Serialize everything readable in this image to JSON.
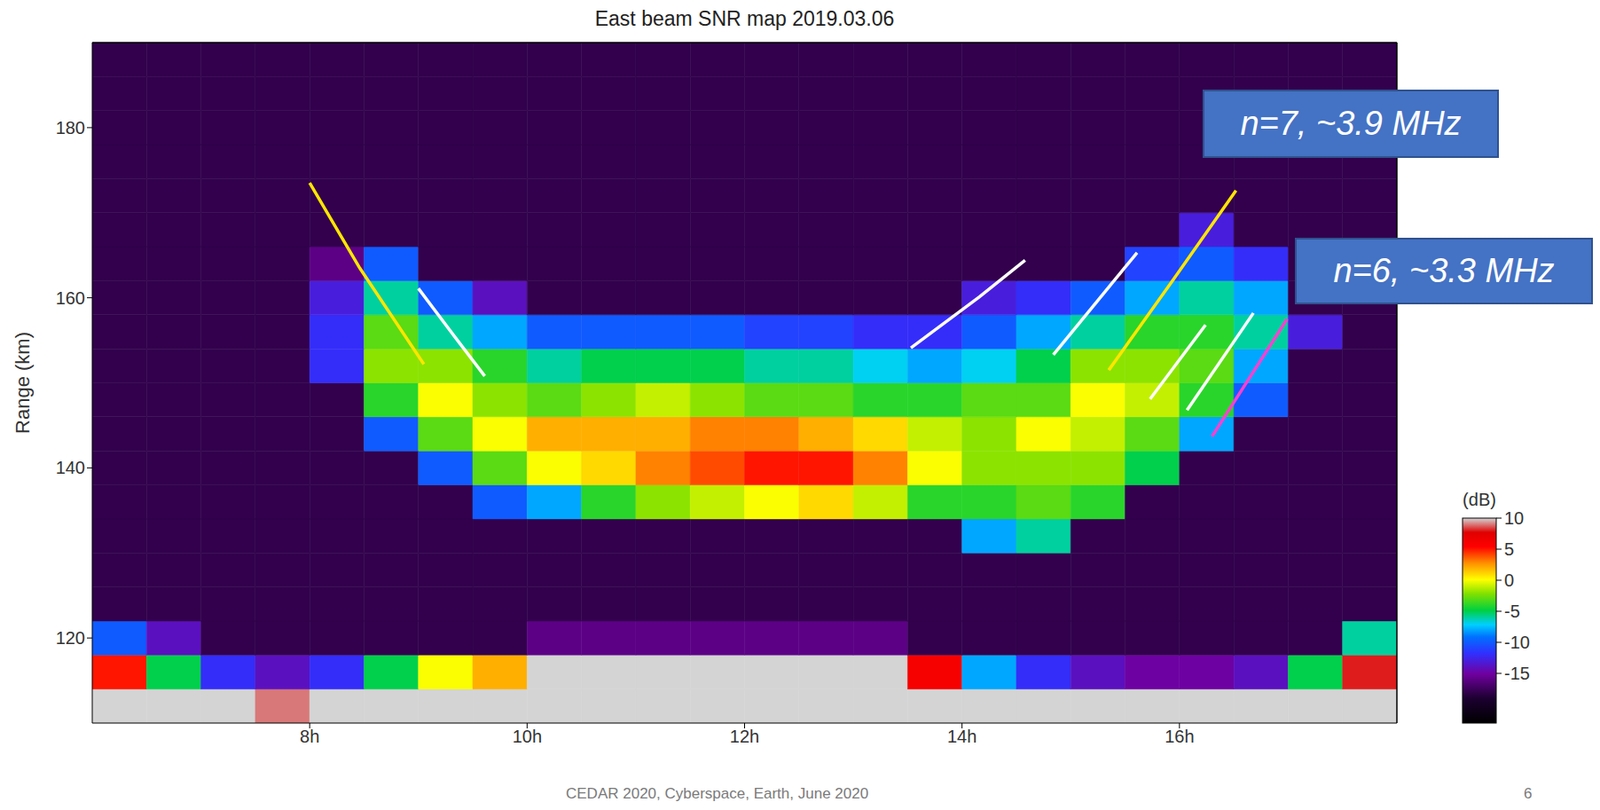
{
  "chart_data": {
    "type": "heatmap",
    "title": "East beam SNR map 2019.03.06",
    "y_label": "Range (km)",
    "xlim": [
      6,
      18
    ],
    "xticks": [
      {
        "value": 8,
        "label": "8h"
      },
      {
        "value": 10,
        "label": "10h"
      },
      {
        "value": 12,
        "label": "12h"
      },
      {
        "value": 14,
        "label": "14h"
      },
      {
        "value": 16,
        "label": "16h"
      }
    ],
    "ylim": [
      110,
      190
    ],
    "yticks": [
      120,
      140,
      160,
      180
    ],
    "x_edges": [
      6,
      6.5,
      7,
      7.5,
      8,
      8.5,
      9,
      9.5,
      10,
      10.5,
      11,
      11.5,
      12,
      12.5,
      13,
      13.5,
      14,
      14.5,
      15,
      15.5,
      16,
      16.5,
      17,
      17.5,
      18
    ],
    "y_edges": [
      110,
      114,
      118,
      122,
      126,
      130,
      134,
      138,
      142,
      146,
      150,
      154,
      158,
      162,
      166,
      170,
      174,
      178,
      182,
      186,
      190
    ],
    "cells": [
      [
        12,
        12,
        10,
        9,
        11,
        12,
        12,
        12,
        12,
        12,
        12,
        12,
        12,
        12,
        12,
        12,
        12,
        12,
        12,
        12,
        12,
        12,
        12,
        12
      ],
      [
        5,
        -5,
        -12,
        -14,
        -12,
        -5,
        0,
        2,
        12,
        12,
        12,
        12,
        12,
        12,
        12,
        6,
        -8,
        -12,
        -14,
        -15,
        -15,
        -14,
        -5,
        8
      ],
      [
        -10,
        -14,
        -18,
        -18,
        -18,
        -18,
        -18,
        -18,
        -16,
        -16,
        -16,
        -16,
        -16,
        -16,
        -16,
        -18,
        -18,
        -18,
        -18,
        -18,
        -18,
        -18,
        -18,
        -6
      ],
      [
        -18,
        -18,
        -18,
        -18,
        -18,
        -18,
        -18,
        -18,
        -18,
        -18,
        -18,
        -18,
        -18,
        -18,
        -18,
        -18,
        -18,
        -18,
        -18,
        -18,
        -18,
        -18,
        -18,
        -18
      ],
      [
        -18,
        -18,
        -18,
        -18,
        -18,
        -18,
        -18,
        -18,
        -18,
        -18,
        -18,
        -18,
        -18,
        -18,
        -18,
        -18,
        -18,
        -18,
        -18,
        -18,
        -18,
        -18,
        -18,
        -18
      ],
      [
        -18,
        -18,
        -18,
        -18,
        -18,
        -18,
        -18,
        -18,
        -18,
        -18,
        -18,
        -18,
        -18,
        -18,
        -18,
        -18,
        -8,
        -6,
        -18,
        -18,
        -18,
        -18,
        -18,
        -18
      ],
      [
        -18,
        -18,
        -18,
        -18,
        -18,
        -18,
        -18,
        -10,
        -8,
        -4,
        -2,
        -1,
        0,
        1,
        -1,
        -4,
        -4,
        -3,
        -4,
        -18,
        -18,
        -18,
        -18,
        -18
      ],
      [
        -18,
        -18,
        -18,
        -18,
        -18,
        -18,
        -10,
        -3,
        0,
        1,
        3,
        4,
        5,
        5,
        3,
        0,
        -2,
        -2,
        -2,
        -5,
        -18,
        -18,
        -18,
        -18
      ],
      [
        -18,
        -18,
        -18,
        -18,
        -18,
        -10,
        -3,
        0,
        2,
        2,
        2,
        3,
        3,
        2,
        1,
        -1,
        -2,
        0,
        -1,
        -3,
        -8,
        -18,
        -18,
        -18
      ],
      [
        -18,
        -18,
        -18,
        -18,
        -18,
        -4,
        0,
        -2,
        -3,
        -2,
        -1,
        -2,
        -3,
        -3,
        -4,
        -4,
        -3,
        -3,
        0,
        -1,
        -4,
        -10,
        -18,
        -18
      ],
      [
        -18,
        -18,
        -18,
        -18,
        -12,
        -2,
        -2,
        -4,
        -6,
        -5,
        -5,
        -5,
        -6,
        -6,
        -7,
        -8,
        -7,
        -5,
        -2,
        -2,
        -3,
        -8,
        -18,
        -18
      ],
      [
        -18,
        -18,
        -18,
        -18,
        -12,
        -3,
        -6,
        -8,
        -10,
        -10,
        -10,
        -10,
        -11,
        -11,
        -12,
        -12,
        -10,
        -8,
        -6,
        -4,
        -4,
        -6,
        -13,
        -18
      ],
      [
        -18,
        -18,
        -18,
        -18,
        -13,
        -6,
        -10,
        -14,
        -18,
        -18,
        -18,
        -18,
        -18,
        -18,
        -18,
        -18,
        -13,
        -12,
        -10,
        -8,
        -6,
        -8,
        -18,
        -18
      ],
      [
        -18,
        -18,
        -18,
        -18,
        -16,
        -10,
        -18,
        -18,
        -18,
        -18,
        -18,
        -18,
        -18,
        -18,
        -18,
        -18,
        -18,
        -18,
        -18,
        -11,
        -10,
        -12,
        -18,
        -18
      ],
      [
        -18,
        -18,
        -18,
        -18,
        -18,
        -18,
        -18,
        -18,
        -18,
        -18,
        -18,
        -18,
        -18,
        -18,
        -18,
        -18,
        -18,
        -18,
        -18,
        -18,
        -13,
        -18,
        -18,
        -18
      ],
      [
        -18,
        -18,
        -18,
        -18,
        -18,
        -18,
        -18,
        -18,
        -18,
        -18,
        -18,
        -18,
        -18,
        -18,
        -18,
        -18,
        -18,
        -18,
        -18,
        -18,
        -18,
        -18,
        -18,
        -18
      ],
      [
        -18,
        -18,
        -18,
        -18,
        -18,
        -18,
        -18,
        -18,
        -18,
        -18,
        -18,
        -18,
        -18,
        -18,
        -18,
        -18,
        -18,
        -18,
        -18,
        -18,
        -18,
        -18,
        -18,
        -18
      ],
      [
        -18,
        -18,
        -18,
        -18,
        -18,
        -18,
        -18,
        -18,
        -18,
        -18,
        -18,
        -18,
        -18,
        -18,
        -18,
        -18,
        -18,
        -18,
        -18,
        -18,
        -18,
        -18,
        -18,
        -18
      ],
      [
        -18,
        -18,
        -18,
        -18,
        -18,
        -18,
        -18,
        -18,
        -18,
        -18,
        -18,
        -18,
        -18,
        -18,
        -18,
        -18,
        -18,
        -18,
        -18,
        -18,
        -18,
        -18,
        -18,
        -18
      ],
      [
        -18,
        -18,
        -18,
        -18,
        -18,
        -18,
        -18,
        -18,
        -18,
        -18,
        -18,
        -18,
        -18,
        -18,
        -18,
        -18,
        -18,
        -18,
        -18,
        -18,
        -18,
        -18,
        -18,
        -18
      ]
    ],
    "colorbar": {
      "label": "(dB)",
      "range": [
        -23,
        10
      ],
      "ticks": [
        10,
        5,
        0,
        -5,
        -10,
        -15
      ]
    },
    "series": [
      {
        "color": "#ffe600",
        "x": [
          8.0,
          8.46,
          9.05
        ],
        "values": [
          173.5,
          163.5,
          152.2
        ]
      },
      {
        "color": "#ffffff",
        "x": [
          9.0,
          9.3,
          9.61
        ],
        "values": [
          161.1,
          156.0,
          150.8
        ]
      },
      {
        "color": "#ffffff",
        "x": [
          13.53,
          14.16,
          14.58
        ],
        "values": [
          154.1,
          160.1,
          164.4
        ]
      },
      {
        "color": "#ffffff",
        "x": [
          14.84,
          15.61
        ],
        "values": [
          153.3,
          165.3
        ]
      },
      {
        "color": "#ffe600",
        "x": [
          15.35,
          15.93,
          16.52
        ],
        "values": [
          151.5,
          161.9,
          172.6
        ]
      },
      {
        "color": "#ffffff",
        "x": [
          15.73,
          16.24
        ],
        "values": [
          148.1,
          156.8
        ]
      },
      {
        "color": "#ffffff",
        "x": [
          16.07,
          16.68
        ],
        "values": [
          146.8,
          158.2
        ]
      },
      {
        "color": "#ff3fd0",
        "x": [
          16.3,
          16.99
        ],
        "values": [
          143.7,
          157.5
        ]
      }
    ],
    "annotations": [
      {
        "text": "n=7, ~3.9 MHz",
        "color": "#4472c4"
      },
      {
        "text": "n=6, ~3.3 MHz",
        "color": "#4472c4"
      }
    ],
    "footer": "CEDAR 2020, Cyberspace, Earth, June 2020",
    "page": 6
  }
}
